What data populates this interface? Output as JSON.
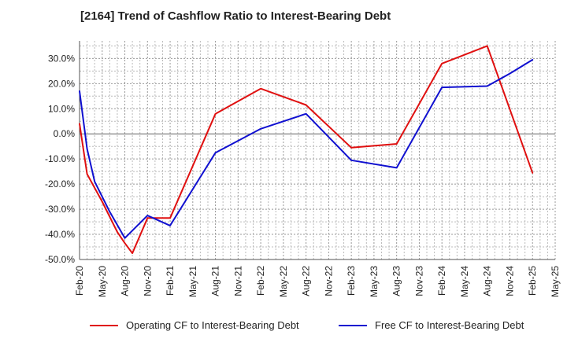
{
  "chart_data": {
    "type": "line",
    "title": "[2164]  Trend of Cashflow Ratio to Interest-Bearing Debt",
    "xlabel": "",
    "ylabel": "",
    "ylim": [
      -50,
      37
    ],
    "y_ticks": [
      30,
      20,
      10,
      0,
      -10,
      -20,
      -30,
      -40,
      -50
    ],
    "y_tick_labels": [
      "30.0%",
      "20.0%",
      "10.0%",
      "0.0%",
      "-10.0%",
      "-20.0%",
      "-30.0%",
      "-40.0%",
      "-50.0%"
    ],
    "x_range": [
      "2020-02",
      "2025-05"
    ],
    "x_ticks": [
      "2020-02",
      "2020-05",
      "2020-08",
      "2020-11",
      "2021-02",
      "2021-05",
      "2021-08",
      "2021-11",
      "2022-02",
      "2022-05",
      "2022-08",
      "2022-11",
      "2023-02",
      "2023-05",
      "2023-08",
      "2023-11",
      "2024-02",
      "2024-05",
      "2024-08",
      "2024-11",
      "2025-02",
      "2025-05"
    ],
    "x_tick_labels": [
      "Feb-20",
      "May-20",
      "Aug-20",
      "Nov-20",
      "Feb-21",
      "May-21",
      "Aug-21",
      "Nov-21",
      "Feb-22",
      "May-22",
      "Aug-22",
      "Nov-22",
      "Feb-23",
      "May-23",
      "Aug-23",
      "Nov-23",
      "Feb-24",
      "May-24",
      "Aug-24",
      "Nov-24",
      "Feb-25",
      "May-25"
    ],
    "grid": true,
    "legend_position": "bottom",
    "series": [
      {
        "name": "Operating CF to Interest-Bearing Debt",
        "color": "#e01010",
        "points": [
          [
            "2020-02",
            4
          ],
          [
            "2020-03",
            -16
          ],
          [
            "2020-05",
            -27
          ],
          [
            "2020-07",
            -39
          ],
          [
            "2020-08",
            -43.5
          ],
          [
            "2020-09",
            -47.5
          ],
          [
            "2020-11",
            -33.5
          ],
          [
            "2021-02",
            -33.5
          ],
          [
            "2021-08",
            8
          ],
          [
            "2022-02",
            18
          ],
          [
            "2022-08",
            11.5
          ],
          [
            "2023-02",
            -5.5
          ],
          [
            "2023-08",
            -4
          ],
          [
            "2024-02",
            28
          ],
          [
            "2024-08",
            35
          ],
          [
            "2025-02",
            -15.5
          ]
        ]
      },
      {
        "name": "Free CF to Interest-Bearing Debt",
        "color": "#1010d0",
        "points": [
          [
            "2020-02",
            17
          ],
          [
            "2020-03",
            -6
          ],
          [
            "2020-04",
            -19
          ],
          [
            "2020-06",
            -31
          ],
          [
            "2020-08",
            -41.5
          ],
          [
            "2020-11",
            -32.5
          ],
          [
            "2021-02",
            -36.5
          ],
          [
            "2021-08",
            -7.5
          ],
          [
            "2022-02",
            2
          ],
          [
            "2022-08",
            8
          ],
          [
            "2023-02",
            -10.5
          ],
          [
            "2023-08",
            -13.5
          ],
          [
            "2024-02",
            18.5
          ],
          [
            "2024-08",
            19
          ],
          [
            "2024-11",
            24
          ],
          [
            "2025-02",
            29.5
          ]
        ]
      }
    ]
  }
}
